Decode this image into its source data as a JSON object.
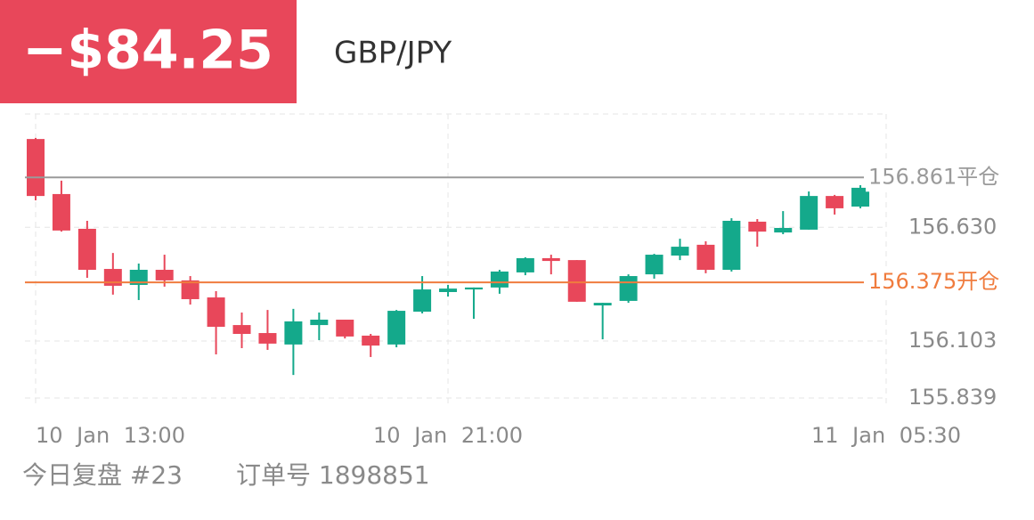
{
  "header": {
    "pnl": "−$84.25",
    "symbol": "GBP/JPY"
  },
  "chart_data": {
    "type": "candlestick",
    "categories": [
      "10 Jan 13:00",
      null,
      null,
      null,
      null,
      null,
      null,
      null,
      null,
      null,
      null,
      null,
      null,
      null,
      null,
      null,
      "10 Jan 21:00",
      null,
      null,
      null,
      null,
      null,
      null,
      null,
      null,
      null,
      null,
      null,
      null,
      null,
      null,
      null,
      null,
      "11 Jan 05:30"
    ],
    "open": [
      157.039,
      156.784,
      156.623,
      156.437,
      156.363,
      156.433,
      156.384,
      156.305,
      156.177,
      156.14,
      156.087,
      156.177,
      156.202,
      156.128,
      156.087,
      156.239,
      156.33,
      156.342,
      156.351,
      156.421,
      156.487,
      156.478,
      156.268,
      156.289,
      156.412,
      156.499,
      156.549,
      156.433,
      156.656,
      156.606,
      156.619,
      156.775,
      156.726,
      156.808
    ],
    "high": [
      157.044,
      156.846,
      156.66,
      156.511,
      156.462,
      156.503,
      156.404,
      156.334,
      156.235,
      156.247,
      156.252,
      156.235,
      156.202,
      156.136,
      156.247,
      156.404,
      156.363,
      156.351,
      156.433,
      156.491,
      156.503,
      156.478,
      156.28,
      156.412,
      156.507,
      156.577,
      156.565,
      156.672,
      156.668,
      156.705,
      156.796,
      156.78,
      156.825,
      156.813
    ],
    "low": [
      156.755,
      156.61,
      156.396,
      156.318,
      156.293,
      156.355,
      156.272,
      156.041,
      156.07,
      156.062,
      155.946,
      156.107,
      156.115,
      156.029,
      156.074,
      156.231,
      156.309,
      156.206,
      156.322,
      156.408,
      156.412,
      156.285,
      156.111,
      156.28,
      156.392,
      156.478,
      156.417,
      156.425,
      156.54,
      156.598,
      156.619,
      156.689,
      156.718,
      156.804
    ],
    "close": [
      156.775,
      156.615,
      156.433,
      156.359,
      156.433,
      156.384,
      156.297,
      156.169,
      156.136,
      156.091,
      156.194,
      156.202,
      156.124,
      156.082,
      156.243,
      156.342,
      156.346,
      156.351,
      156.425,
      156.487,
      156.474,
      156.285,
      156.28,
      156.404,
      156.503,
      156.54,
      156.433,
      156.66,
      156.61,
      156.627,
      156.775,
      156.718,
      156.813,
      156.813
    ],
    "up_color": "#14a98b",
    "down_color": "#e8475a",
    "ylim": [
      155.806,
      157.155
    ],
    "yticks": [
      155.839,
      156.103,
      {
        "value": 156.63,
        "label": "156.630"
      }
    ],
    "grid": true,
    "price_lines": [
      {
        "name": "平仓",
        "value": 156.861,
        "color": "#9a9a9a"
      },
      {
        "name": "开仓",
        "value": 156.375,
        "color": "#f07c3e"
      }
    ]
  },
  "footer": {
    "review": "今日复盘 #23",
    "order": "订单号 1898851"
  }
}
